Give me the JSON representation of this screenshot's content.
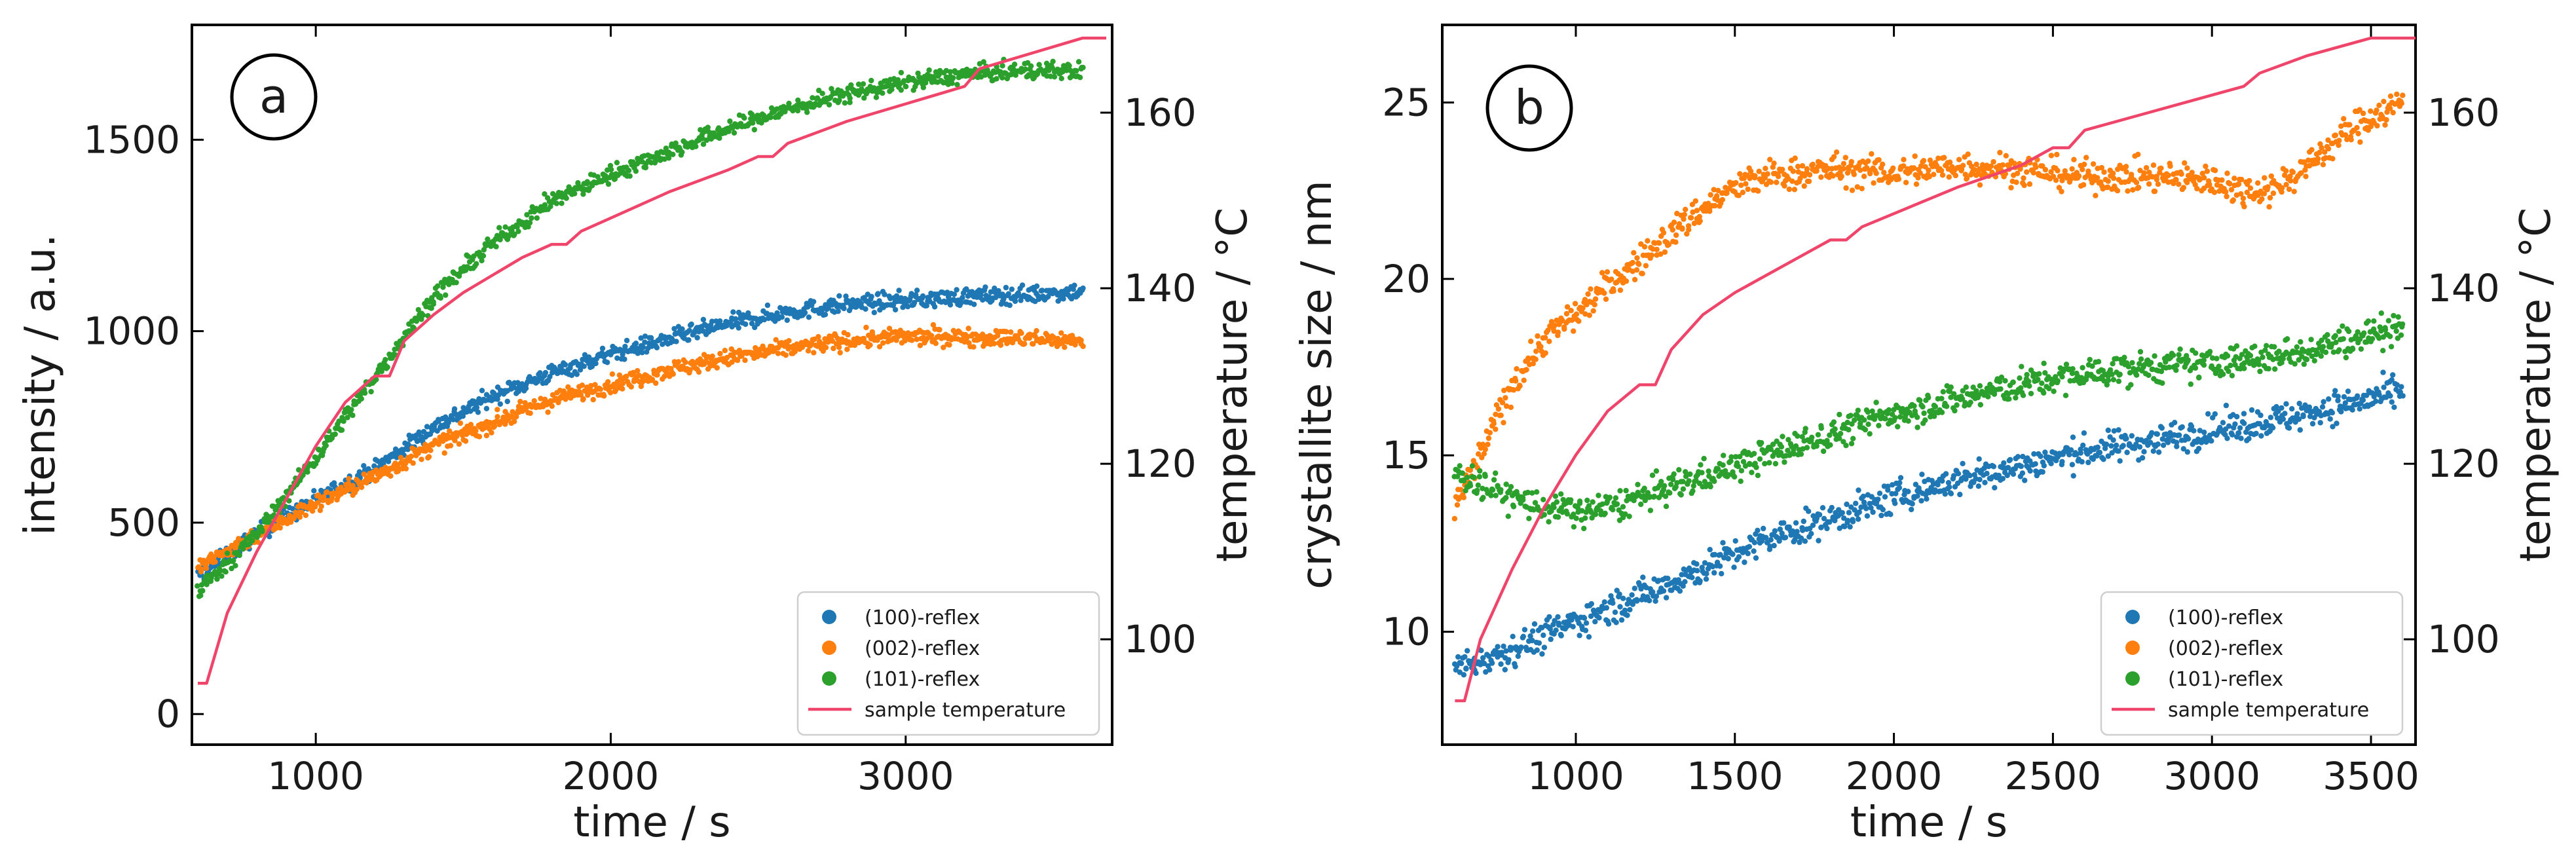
{
  "chart_data": [
    {
      "type": "scatter",
      "panel_label": "a",
      "xlabel": "time / s",
      "ylabel": "intensity / a.u.",
      "y2label": "temperature / °C",
      "xlim": [
        580,
        3700
      ],
      "ylim": [
        -80,
        1800
      ],
      "y2lim": [
        88,
        170
      ],
      "xticks": [
        1000,
        2000,
        3000
      ],
      "yticks": [
        0,
        500,
        1000,
        1500
      ],
      "y2ticks": [
        100,
        120,
        140,
        160
      ],
      "legend_position": "bottom-right",
      "series": [
        {
          "name": "(100)-reflex",
          "color": "#1f77b4",
          "marker": "dot",
          "axis": "left",
          "x": [
            600,
            800,
            1000,
            1200,
            1400,
            1600,
            1800,
            2000,
            2200,
            2400,
            2600,
            2800,
            3000,
            3200,
            3400,
            3600
          ],
          "y": [
            360,
            470,
            560,
            640,
            750,
            830,
            890,
            940,
            980,
            1020,
            1050,
            1070,
            1080,
            1090,
            1095,
            1105
          ]
        },
        {
          "name": "(002)-reflex",
          "color": "#ff7f0e",
          "marker": "dot",
          "axis": "left",
          "x": [
            600,
            800,
            1000,
            1200,
            1400,
            1600,
            1800,
            2000,
            2200,
            2400,
            2600,
            2800,
            3000,
            3200,
            3400,
            3600
          ],
          "y": [
            380,
            470,
            550,
            620,
            700,
            760,
            820,
            860,
            900,
            930,
            955,
            975,
            985,
            985,
            980,
            975
          ]
        },
        {
          "name": "(101)-reflex",
          "color": "#2ca02c",
          "marker": "dot",
          "axis": "left",
          "x": [
            600,
            800,
            1000,
            1200,
            1400,
            1600,
            1800,
            2000,
            2200,
            2400,
            2600,
            2800,
            3000,
            3200,
            3400,
            3600
          ],
          "y": [
            320,
            470,
            670,
            880,
            1090,
            1230,
            1340,
            1410,
            1470,
            1530,
            1580,
            1620,
            1650,
            1670,
            1680,
            1680
          ]
        },
        {
          "name": "sample temperature",
          "color": "#f0456a",
          "marker": "line",
          "axis": "right",
          "x": [
            600,
            630,
            700,
            800,
            900,
            1000,
            1100,
            1200,
            1250,
            1300,
            1400,
            1500,
            1600,
            1700,
            1800,
            1850,
            1900,
            2000,
            2200,
            2400,
            2500,
            2550,
            2600,
            2800,
            3000,
            3200,
            3250,
            3400,
            3600,
            3680
          ],
          "y": [
            95,
            95,
            103,
            110,
            116,
            122,
            127,
            130,
            130,
            134,
            137,
            139.5,
            141.5,
            143.5,
            145,
            145,
            146.5,
            148,
            151,
            153.5,
            155,
            155,
            156.5,
            159,
            161,
            163,
            165,
            166.5,
            168.5,
            168.5
          ]
        }
      ]
    },
    {
      "type": "scatter",
      "panel_label": "b",
      "xlabel": "time / s",
      "ylabel": "crystallite size / nm",
      "y2label": "temperature / °C",
      "xlim": [
        580,
        3640
      ],
      "ylim": [
        6.8,
        27.2
      ],
      "y2lim": [
        88,
        170
      ],
      "xticks": [
        1000,
        1500,
        2000,
        2500,
        3000,
        3500
      ],
      "yticks": [
        10,
        15,
        20,
        25
      ],
      "y2ticks": [
        100,
        120,
        140,
        160
      ],
      "legend_position": "bottom-right",
      "series": [
        {
          "name": "(100)-reflex",
          "color": "#1f77b4",
          "marker": "dot",
          "axis": "left",
          "x": [
            620,
            800,
            1000,
            1200,
            1400,
            1600,
            1800,
            2000,
            2200,
            2400,
            2600,
            2800,
            3000,
            3200,
            3400,
            3600
          ],
          "y": [
            9.0,
            9.5,
            10.3,
            11.0,
            11.8,
            12.6,
            13.2,
            13.8,
            14.3,
            14.7,
            15.1,
            15.4,
            15.7,
            16.0,
            16.4,
            16.8
          ]
        },
        {
          "name": "(002)-reflex",
          "color": "#ff7f0e",
          "marker": "dot",
          "axis": "left",
          "x": [
            620,
            700,
            800,
            900,
            1000,
            1100,
            1200,
            1300,
            1400,
            1500,
            1600,
            1800,
            2000,
            2200,
            2400,
            2600,
            2800,
            3000,
            3100,
            3200,
            3300,
            3400,
            3500,
            3600
          ],
          "y": [
            13.5,
            15.0,
            17.0,
            18.3,
            19.0,
            19.8,
            20.5,
            21.3,
            22.0,
            22.6,
            22.9,
            23.1,
            23.0,
            23.2,
            23.1,
            22.9,
            22.9,
            22.8,
            22.5,
            22.6,
            23.2,
            24.0,
            24.6,
            25.0
          ]
        },
        {
          "name": "(101)-reflex",
          "color": "#2ca02c",
          "marker": "dot",
          "axis": "left",
          "x": [
            620,
            700,
            800,
            900,
            1000,
            1100,
            1200,
            1400,
            1600,
            1800,
            2000,
            2200,
            2400,
            2600,
            2800,
            3000,
            3200,
            3400,
            3600
          ],
          "y": [
            14.5,
            14.2,
            13.8,
            13.5,
            13.4,
            13.5,
            13.8,
            14.4,
            15.0,
            15.6,
            16.2,
            16.6,
            17.0,
            17.3,
            17.5,
            17.6,
            17.8,
            18.2,
            18.7
          ]
        },
        {
          "name": "sample temperature",
          "color": "#f0456a",
          "marker": "line",
          "axis": "right",
          "x": [
            620,
            650,
            700,
            800,
            900,
            1000,
            1100,
            1200,
            1250,
            1300,
            1400,
            1500,
            1600,
            1700,
            1800,
            1850,
            1900,
            2000,
            2200,
            2400,
            2500,
            2550,
            2600,
            2800,
            3000,
            3100,
            3150,
            3300,
            3500,
            3640
          ],
          "y": [
            93,
            93,
            100,
            108,
            115,
            121,
            126,
            129,
            129,
            133,
            137,
            139.5,
            141.5,
            143.5,
            145.5,
            145.5,
            147,
            148.5,
            151.5,
            154,
            156,
            156,
            158,
            160,
            162,
            163,
            164.5,
            166.5,
            168.5,
            168.5
          ]
        }
      ]
    }
  ]
}
